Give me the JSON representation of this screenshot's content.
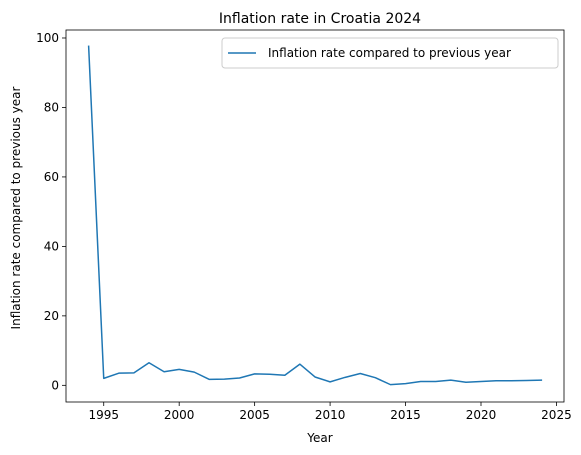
{
  "chart_data": {
    "type": "line",
    "title": "Inflation rate in Croatia 2024",
    "xlabel": "Year",
    "ylabel": "Inflation rate compared to previous year",
    "xlim": [
      1992.5,
      2025.5
    ],
    "ylim": [
      -4.8,
      102.3
    ],
    "xticks": [
      1995,
      2000,
      2005,
      2010,
      2015,
      2020,
      2025
    ],
    "yticks": [
      0,
      20,
      40,
      60,
      80,
      100
    ],
    "grid": false,
    "legend_position": "top-right",
    "series": [
      {
        "name": "Inflation rate compared to previous year",
        "color": "#1f77b4",
        "x": [
          1994,
          1995,
          1996,
          1997,
          1998,
          1999,
          2000,
          2001,
          2002,
          2003,
          2004,
          2005,
          2006,
          2007,
          2008,
          2009,
          2010,
          2011,
          2012,
          2013,
          2014,
          2015,
          2016,
          2017,
          2018,
          2019,
          2020,
          2021,
          2022,
          2023,
          2024
        ],
        "y": [
          97.6,
          2.0,
          3.5,
          3.6,
          6.5,
          3.9,
          4.6,
          3.8,
          1.7,
          1.8,
          2.1,
          3.3,
          3.2,
          2.9,
          6.1,
          2.4,
          1.0,
          2.3,
          3.4,
          2.2,
          0.2,
          0.5,
          1.1,
          1.1,
          1.5,
          0.9,
          1.1,
          1.3,
          1.3,
          1.4,
          1.5
        ]
      }
    ]
  }
}
